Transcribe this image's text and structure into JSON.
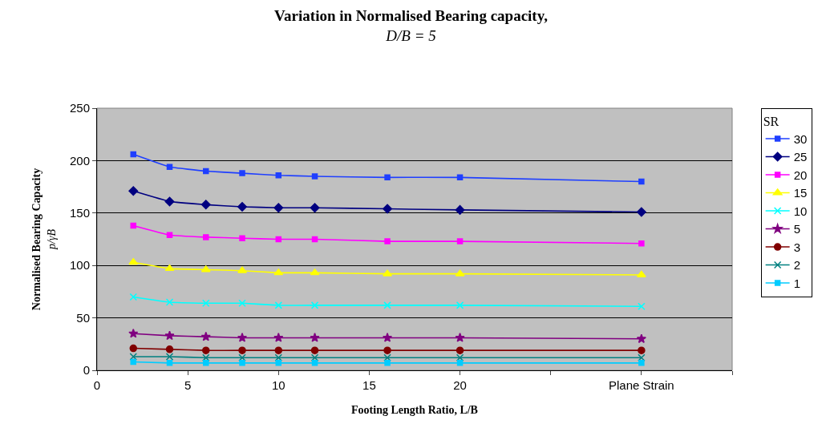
{
  "chart_data": {
    "type": "line",
    "title": "Variation in Normalised Bearing capacity,",
    "subtitle": "D/B = 5",
    "xlabel": "Footing Length Ratio, L/B",
    "ylabel": "Normalised Bearing Capacity",
    "y2label": "p/γB",
    "legend_title": "SR",
    "x": [
      2,
      4,
      6,
      8,
      10,
      12,
      16,
      20,
      30
    ],
    "xlim": [
      0,
      35
    ],
    "xticks": [
      0,
      5,
      10,
      15,
      20,
      {
        "value": 25,
        "label": null
      },
      {
        "value": 30,
        "label": "Plane Strain"
      },
      {
        "value": 35,
        "label": null
      }
    ],
    "ylim": [
      0,
      250
    ],
    "yticks": [
      0,
      50,
      100,
      150,
      200,
      250
    ],
    "grid": "y",
    "legend": "right",
    "series": [
      {
        "name": "30",
        "color": "#1f3fff",
        "marker": "square",
        "values": [
          206,
          194,
          190,
          188,
          186,
          185,
          184,
          184,
          180
        ]
      },
      {
        "name": "25",
        "color": "#000080",
        "marker": "diamond",
        "values": [
          171,
          161,
          158,
          156,
          155,
          155,
          154,
          153,
          151
        ]
      },
      {
        "name": "20",
        "color": "#ff00ff",
        "marker": "square",
        "values": [
          138,
          129,
          127,
          126,
          125,
          125,
          123,
          123,
          121
        ]
      },
      {
        "name": "15",
        "color": "#ffff00",
        "marker": "triangle",
        "values": [
          103,
          97,
          96,
          95,
          93,
          93,
          92,
          92,
          91
        ]
      },
      {
        "name": "10",
        "color": "#00ffff",
        "marker": "cross",
        "values": [
          70,
          65,
          64,
          64,
          62,
          62,
          62,
          62,
          61
        ]
      },
      {
        "name": "5",
        "color": "#800080",
        "marker": "star",
        "values": [
          35,
          33,
          32,
          31,
          31,
          31,
          31,
          31,
          30
        ]
      },
      {
        "name": "3",
        "color": "#800000",
        "marker": "circle",
        "values": [
          21,
          20,
          19,
          19,
          19,
          19,
          19,
          19,
          19
        ]
      },
      {
        "name": "2",
        "color": "#008080",
        "marker": "cross",
        "values": [
          13,
          13,
          12,
          12,
          12,
          12,
          12,
          12,
          12
        ]
      },
      {
        "name": "1",
        "color": "#00ccff",
        "marker": "square",
        "values": [
          8,
          7,
          7,
          7,
          7,
          7,
          7,
          7,
          7
        ]
      }
    ]
  }
}
